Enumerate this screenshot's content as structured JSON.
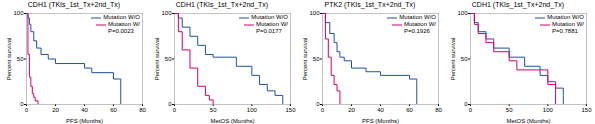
{
  "chart_data": [
    {
      "type": "step",
      "title": "CDH1 (TKIs_1st_Tx+2nd_Tx)",
      "xlabel": "PFS (Months)",
      "ylabel": "Percent survival",
      "xlim": [
        0,
        80
      ],
      "ylim": [
        0,
        100
      ],
      "xticks": [
        0,
        20,
        40,
        60,
        80
      ],
      "yticks": [
        0,
        50,
        100
      ],
      "legend": "upper right",
      "annotations": [
        "P=0.0023"
      ],
      "series": [
        {
          "name": "Mutation W/O",
          "color": "#2050a0",
          "x": [
            0,
            0.5,
            1,
            2,
            3,
            5,
            7,
            10,
            15,
            20,
            40,
            45,
            60,
            65,
            65
          ],
          "values": [
            100,
            100,
            95,
            88,
            80,
            70,
            62,
            55,
            50,
            45,
            40,
            35,
            28,
            28,
            0
          ]
        },
        {
          "name": "Mutation W/",
          "color": "#d0006f",
          "x": [
            0,
            1,
            2,
            3,
            4,
            5,
            6,
            8,
            8
          ],
          "values": [
            100,
            55,
            30,
            20,
            12,
            8,
            4,
            2,
            0
          ]
        }
      ]
    },
    {
      "type": "step",
      "title": "CDH1 (TKIs_1st_Tx+2nd_Tx)",
      "xlabel": "MetOS (Months)",
      "ylabel": "Percent survival",
      "xlim": [
        0,
        150
      ],
      "ylim": [
        0,
        100
      ],
      "xticks": [
        0,
        50,
        100,
        150
      ],
      "yticks": [
        0,
        50,
        100
      ],
      "legend": "upper right",
      "annotations": [
        "P=0.0177"
      ],
      "series": [
        {
          "name": "Mutation W/O",
          "color": "#2050a0",
          "x": [
            0,
            5,
            10,
            20,
            30,
            40,
            50,
            80,
            100,
            110,
            120,
            130,
            140,
            140
          ],
          "values": [
            100,
            95,
            85,
            75,
            65,
            55,
            52,
            42,
            32,
            22,
            15,
            10,
            8,
            0
          ]
        },
        {
          "name": "Mutation W/",
          "color": "#d0006f",
          "x": [
            0,
            5,
            10,
            20,
            30,
            40,
            45,
            50,
            50
          ],
          "values": [
            100,
            80,
            60,
            40,
            20,
            10,
            5,
            3,
            0
          ]
        }
      ]
    },
    {
      "type": "step",
      "title": "PTK2 (TKIs_1st_Tx+2nd_Tx)",
      "xlabel": "PFS (Months)",
      "ylabel": "Percent survival",
      "xlim": [
        0,
        80
      ],
      "ylim": [
        0,
        100
      ],
      "xticks": [
        0,
        20,
        40,
        60,
        80
      ],
      "yticks": [
        0,
        50,
        100
      ],
      "legend": "upper right",
      "annotations": [
        "P=0.1926"
      ],
      "series": [
        {
          "name": "Mutation W/O",
          "color": "#2050a0",
          "x": [
            0,
            2,
            5,
            8,
            10,
            12,
            15,
            20,
            30,
            40,
            60,
            65,
            65
          ],
          "values": [
            100,
            90,
            78,
            68,
            58,
            52,
            48,
            40,
            36,
            32,
            28,
            25,
            0
          ]
        },
        {
          "name": "Mutation W/",
          "color": "#d0006f",
          "x": [
            0,
            2,
            4,
            6,
            8,
            10,
            12,
            12
          ],
          "values": [
            100,
            72,
            52,
            32,
            22,
            15,
            8,
            0
          ]
        }
      ]
    },
    {
      "type": "step",
      "title": "CDH1 (TKIs_1st_Tx+2nd_Tx)",
      "xlabel": "MetOS (Months)",
      "ylabel": "Percent survival",
      "xlim": [
        0,
        150
      ],
      "ylim": [
        0,
        100
      ],
      "xticks": [
        0,
        50,
        100,
        150
      ],
      "yticks": [
        0,
        50,
        100
      ],
      "legend": "upper right",
      "annotations": [
        "P=0.7881"
      ],
      "series": [
        {
          "name": "Mutation W/O",
          "color": "#2050a0",
          "x": [
            0,
            5,
            10,
            20,
            30,
            50,
            70,
            90,
            100,
            110,
            120,
            120
          ],
          "values": [
            100,
            90,
            80,
            72,
            62,
            52,
            42,
            32,
            25,
            18,
            10,
            0
          ]
        },
        {
          "name": "Mutation W/",
          "color": "#d0006f",
          "x": [
            0,
            5,
            10,
            20,
            30,
            50,
            60,
            100,
            110,
            110
          ],
          "values": [
            100,
            88,
            78,
            68,
            58,
            48,
            38,
            22,
            12,
            0
          ]
        }
      ]
    }
  ]
}
